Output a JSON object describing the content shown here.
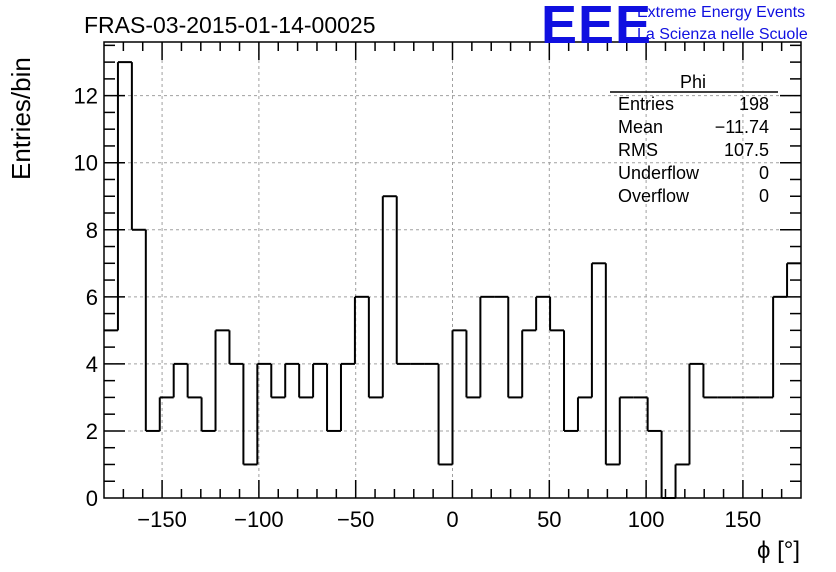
{
  "title": "FRAS-03-2015-01-14-00025",
  "logo": {
    "mark": "EEE",
    "line1": "Extreme Energy Events",
    "line2": "La Scienza nelle Scuole",
    "color": "#1010e0"
  },
  "stats": {
    "title": "Phi",
    "rows": [
      {
        "label": "Entries",
        "value": "198"
      },
      {
        "label": "Mean",
        "value": "−11.74"
      },
      {
        "label": "RMS",
        "value": "107.5"
      },
      {
        "label": "Underflow",
        "value": "0"
      },
      {
        "label": "Overflow",
        "value": "0"
      }
    ]
  },
  "chart_data": {
    "type": "bar",
    "histogram": true,
    "title": "FRAS-03-2015-01-14-00025",
    "xlabel": "ϕ [°]",
    "ylabel": "Entries/bin",
    "xlim": [
      -180,
      180
    ],
    "ylim": [
      0,
      13.6
    ],
    "bin_width": 7.2,
    "grid": true,
    "xticks": [
      -150,
      -100,
      -50,
      0,
      50,
      100,
      150
    ],
    "xtick_labels": [
      "−150",
      "−100",
      "−50",
      "0",
      "50",
      "100",
      "150"
    ],
    "yticks": [
      0,
      2,
      4,
      6,
      8,
      10,
      12
    ],
    "ytick_labels": [
      "0",
      "2",
      "4",
      "6",
      "8",
      "10",
      "12"
    ],
    "values": [
      5,
      13,
      8,
      2,
      3,
      4,
      3,
      2,
      5,
      4,
      1,
      4,
      3,
      4,
      3,
      4,
      2,
      4,
      6,
      3,
      9,
      4,
      4,
      4,
      1,
      5,
      3,
      6,
      6,
      3,
      5,
      6,
      5,
      2,
      3,
      7,
      1,
      3,
      3,
      2,
      0,
      1,
      4,
      3,
      3,
      3,
      3,
      3,
      6,
      7
    ],
    "line_color": "#000000",
    "grid_color": "#a0a0a0"
  }
}
